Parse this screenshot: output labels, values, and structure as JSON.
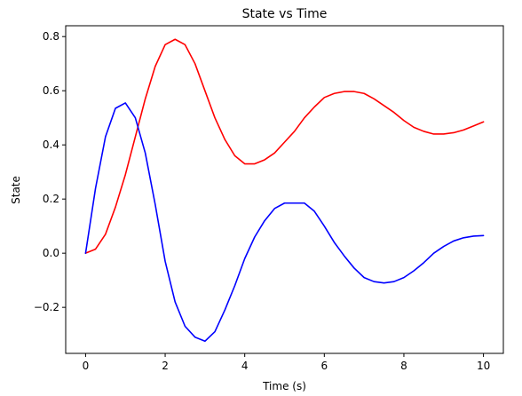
{
  "chart_data": {
    "type": "line",
    "title": "State vs Time",
    "xlabel": "Time (s)",
    "ylabel": "State",
    "xlim": [
      -0.5,
      10.5
    ],
    "ylim": [
      -0.37,
      0.84
    ],
    "xticks": [
      0,
      2,
      4,
      6,
      8,
      10
    ],
    "xtick_labels": [
      "0",
      "2",
      "4",
      "6",
      "8",
      "10"
    ],
    "yticks": [
      -0.2,
      0.0,
      0.2,
      0.4,
      0.6,
      0.8
    ],
    "ytick_labels": [
      "−0.2",
      "0.0",
      "0.2",
      "0.4",
      "0.6",
      "0.8"
    ],
    "grid": false,
    "legend": "none",
    "series": [
      {
        "color": "#ff0000",
        "x": [
          0,
          0.25,
          0.5,
          0.75,
          1.0,
          1.25,
          1.5,
          1.75,
          2.0,
          2.25,
          2.5,
          2.75,
          3.0,
          3.25,
          3.5,
          3.75,
          4.0,
          4.25,
          4.5,
          4.75,
          5.0,
          5.25,
          5.5,
          5.75,
          6.0,
          6.25,
          6.5,
          6.75,
          7.0,
          7.25,
          7.5,
          7.75,
          8.0,
          8.25,
          8.5,
          8.75,
          9.0,
          9.25,
          9.5,
          9.75,
          10.0
        ],
        "y": [
          0.0,
          0.015,
          0.07,
          0.17,
          0.29,
          0.43,
          0.57,
          0.69,
          0.77,
          0.79,
          0.77,
          0.7,
          0.6,
          0.5,
          0.42,
          0.36,
          0.33,
          0.33,
          0.345,
          0.37,
          0.41,
          0.45,
          0.5,
          0.54,
          0.575,
          0.59,
          0.597,
          0.597,
          0.59,
          0.57,
          0.545,
          0.52,
          0.49,
          0.465,
          0.45,
          0.44,
          0.44,
          0.445,
          0.455,
          0.47,
          0.485
        ]
      },
      {
        "color": "#0000ff",
        "x": [
          0,
          0.25,
          0.5,
          0.75,
          1.0,
          1.25,
          1.5,
          1.75,
          2.0,
          2.25,
          2.5,
          2.75,
          3.0,
          3.25,
          3.5,
          3.75,
          4.0,
          4.25,
          4.5,
          4.75,
          5.0,
          5.25,
          5.5,
          5.75,
          6.0,
          6.25,
          6.5,
          6.75,
          7.0,
          7.25,
          7.5,
          7.75,
          8.0,
          8.25,
          8.5,
          8.75,
          9.0,
          9.25,
          9.5,
          9.75,
          10.0
        ],
        "y": [
          0.0,
          0.24,
          0.43,
          0.535,
          0.555,
          0.5,
          0.37,
          0.18,
          -0.03,
          -0.18,
          -0.27,
          -0.31,
          -0.325,
          -0.29,
          -0.21,
          -0.12,
          -0.02,
          0.06,
          0.12,
          0.165,
          0.185,
          0.185,
          0.185,
          0.155,
          0.1,
          0.04,
          -0.01,
          -0.055,
          -0.09,
          -0.105,
          -0.11,
          -0.105,
          -0.09,
          -0.065,
          -0.035,
          0.0,
          0.025,
          0.045,
          0.057,
          0.063,
          0.065
        ]
      }
    ]
  }
}
